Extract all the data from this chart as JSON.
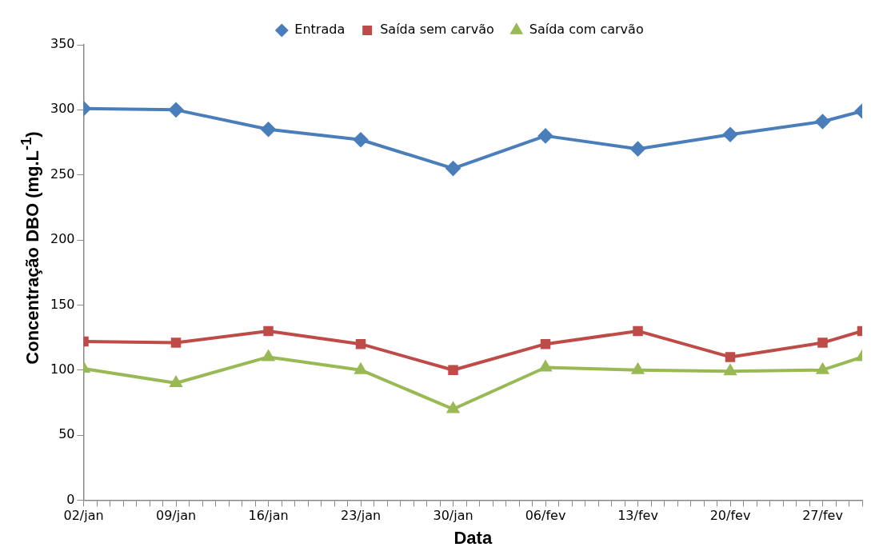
{
  "chart_data": {
    "type": "line",
    "xlabel": "Data",
    "ylabel": "Concentração DBO (mg.L$^{-1}$)",
    "x": [
      "--01-02",
      "--01-09",
      "--01-16",
      "--01-23",
      "--01-30",
      "--02-06",
      "--02-13",
      "--02-20",
      "--02-27",
      "--03-02"
    ],
    "series": [
      {
        "name": "Entrada",
        "color": "#4a7ebb",
        "marker": "diamond",
        "values": [
          301,
          300,
          285,
          277,
          255,
          280,
          270,
          281,
          291,
          299
        ]
      },
      {
        "name": "Saída sem carvão",
        "color": "#be4b48",
        "marker": "square",
        "values": [
          122,
          121,
          130,
          120,
          100,
          120,
          130,
          110,
          121,
          130
        ]
      },
      {
        "name": "Saída com carvão",
        "color": "#98b954",
        "marker": "triangle",
        "values": [
          101,
          90,
          110,
          100,
          70,
          102,
          100,
          99,
          100,
          110
        ]
      }
    ],
    "xlim": [
      "--01-02",
      "--03-02"
    ],
    "xticks": [
      {
        "value": "--01-02",
        "label": "02/jan"
      },
      {
        "value": "--01-03",
        "label": null
      },
      {
        "value": "--01-04",
        "label": null
      },
      {
        "value": "--01-05",
        "label": null
      },
      {
        "value": "--01-06",
        "label": null
      },
      {
        "value": "--01-07",
        "label": null
      },
      {
        "value": "--01-08",
        "label": null
      },
      {
        "value": "--01-09",
        "label": "09/jan"
      },
      {
        "value": "--01-10",
        "label": null
      },
      {
        "value": "--01-11",
        "label": null
      },
      {
        "value": "--01-12",
        "label": null
      },
      {
        "value": "--01-13",
        "label": null
      },
      {
        "value": "--01-14",
        "label": null
      },
      {
        "value": "--01-15",
        "label": null
      },
      {
        "value": "--01-16",
        "label": "16/jan"
      },
      {
        "value": "--01-17",
        "label": null
      },
      {
        "value": "--01-18",
        "label": null
      },
      {
        "value": "--01-19",
        "label": null
      },
      {
        "value": "--01-20",
        "label": null
      },
      {
        "value": "--01-21",
        "label": null
      },
      {
        "value": "--01-22",
        "label": null
      },
      {
        "value": "--01-23",
        "label": "23/jan"
      },
      {
        "value": "--01-24",
        "label": null
      },
      {
        "value": "--01-25",
        "label": null
      },
      {
        "value": "--01-26",
        "label": null
      },
      {
        "value": "--01-27",
        "label": null
      },
      {
        "value": "--01-28",
        "label": null
      },
      {
        "value": "--01-29",
        "label": null
      },
      {
        "value": "--01-30",
        "label": "30/jan"
      },
      {
        "value": "--01-31",
        "label": null
      },
      {
        "value": "--02-01",
        "label": null
      },
      {
        "value": "--02-02",
        "label": null
      },
      {
        "value": "--02-03",
        "label": null
      },
      {
        "value": "--02-04",
        "label": null
      },
      {
        "value": "--02-05",
        "label": null
      },
      {
        "value": "--02-06",
        "label": "06/fev"
      },
      {
        "value": "--02-07",
        "label": null
      },
      {
        "value": "--02-08",
        "label": null
      },
      {
        "value": "--02-09",
        "label": null
      },
      {
        "value": "--02-10",
        "label": null
      },
      {
        "value": "--02-11",
        "label": null
      },
      {
        "value": "--02-12",
        "label": null
      },
      {
        "value": "--02-13",
        "label": "13/fev"
      },
      {
        "value": "--02-14",
        "label": null
      },
      {
        "value": "--02-15",
        "label": null
      },
      {
        "value": "--02-16",
        "label": null
      },
      {
        "value": "--02-17",
        "label": null
      },
      {
        "value": "--02-18",
        "label": null
      },
      {
        "value": "--02-19",
        "label": null
      },
      {
        "value": "--02-20",
        "label": "20/fev"
      },
      {
        "value": "--02-21",
        "label": null
      },
      {
        "value": "--02-22",
        "label": null
      },
      {
        "value": "--02-23",
        "label": null
      },
      {
        "value": "--02-24",
        "label": null
      },
      {
        "value": "--02-25",
        "label": null
      },
      {
        "value": "--02-26",
        "label": null
      },
      {
        "value": "--02-27",
        "label": "27/fev"
      },
      {
        "value": "--02-28",
        "label": null
      },
      {
        "value": "--03-01",
        "label": null
      },
      {
        "value": "--03-02",
        "label": null
      }
    ],
    "ylim": [
      0,
      350
    ],
    "yticks": [
      0,
      50,
      100,
      150,
      200,
      250,
      300,
      350
    ],
    "grid": false,
    "legend": "top",
    "line_style": "solid"
  }
}
